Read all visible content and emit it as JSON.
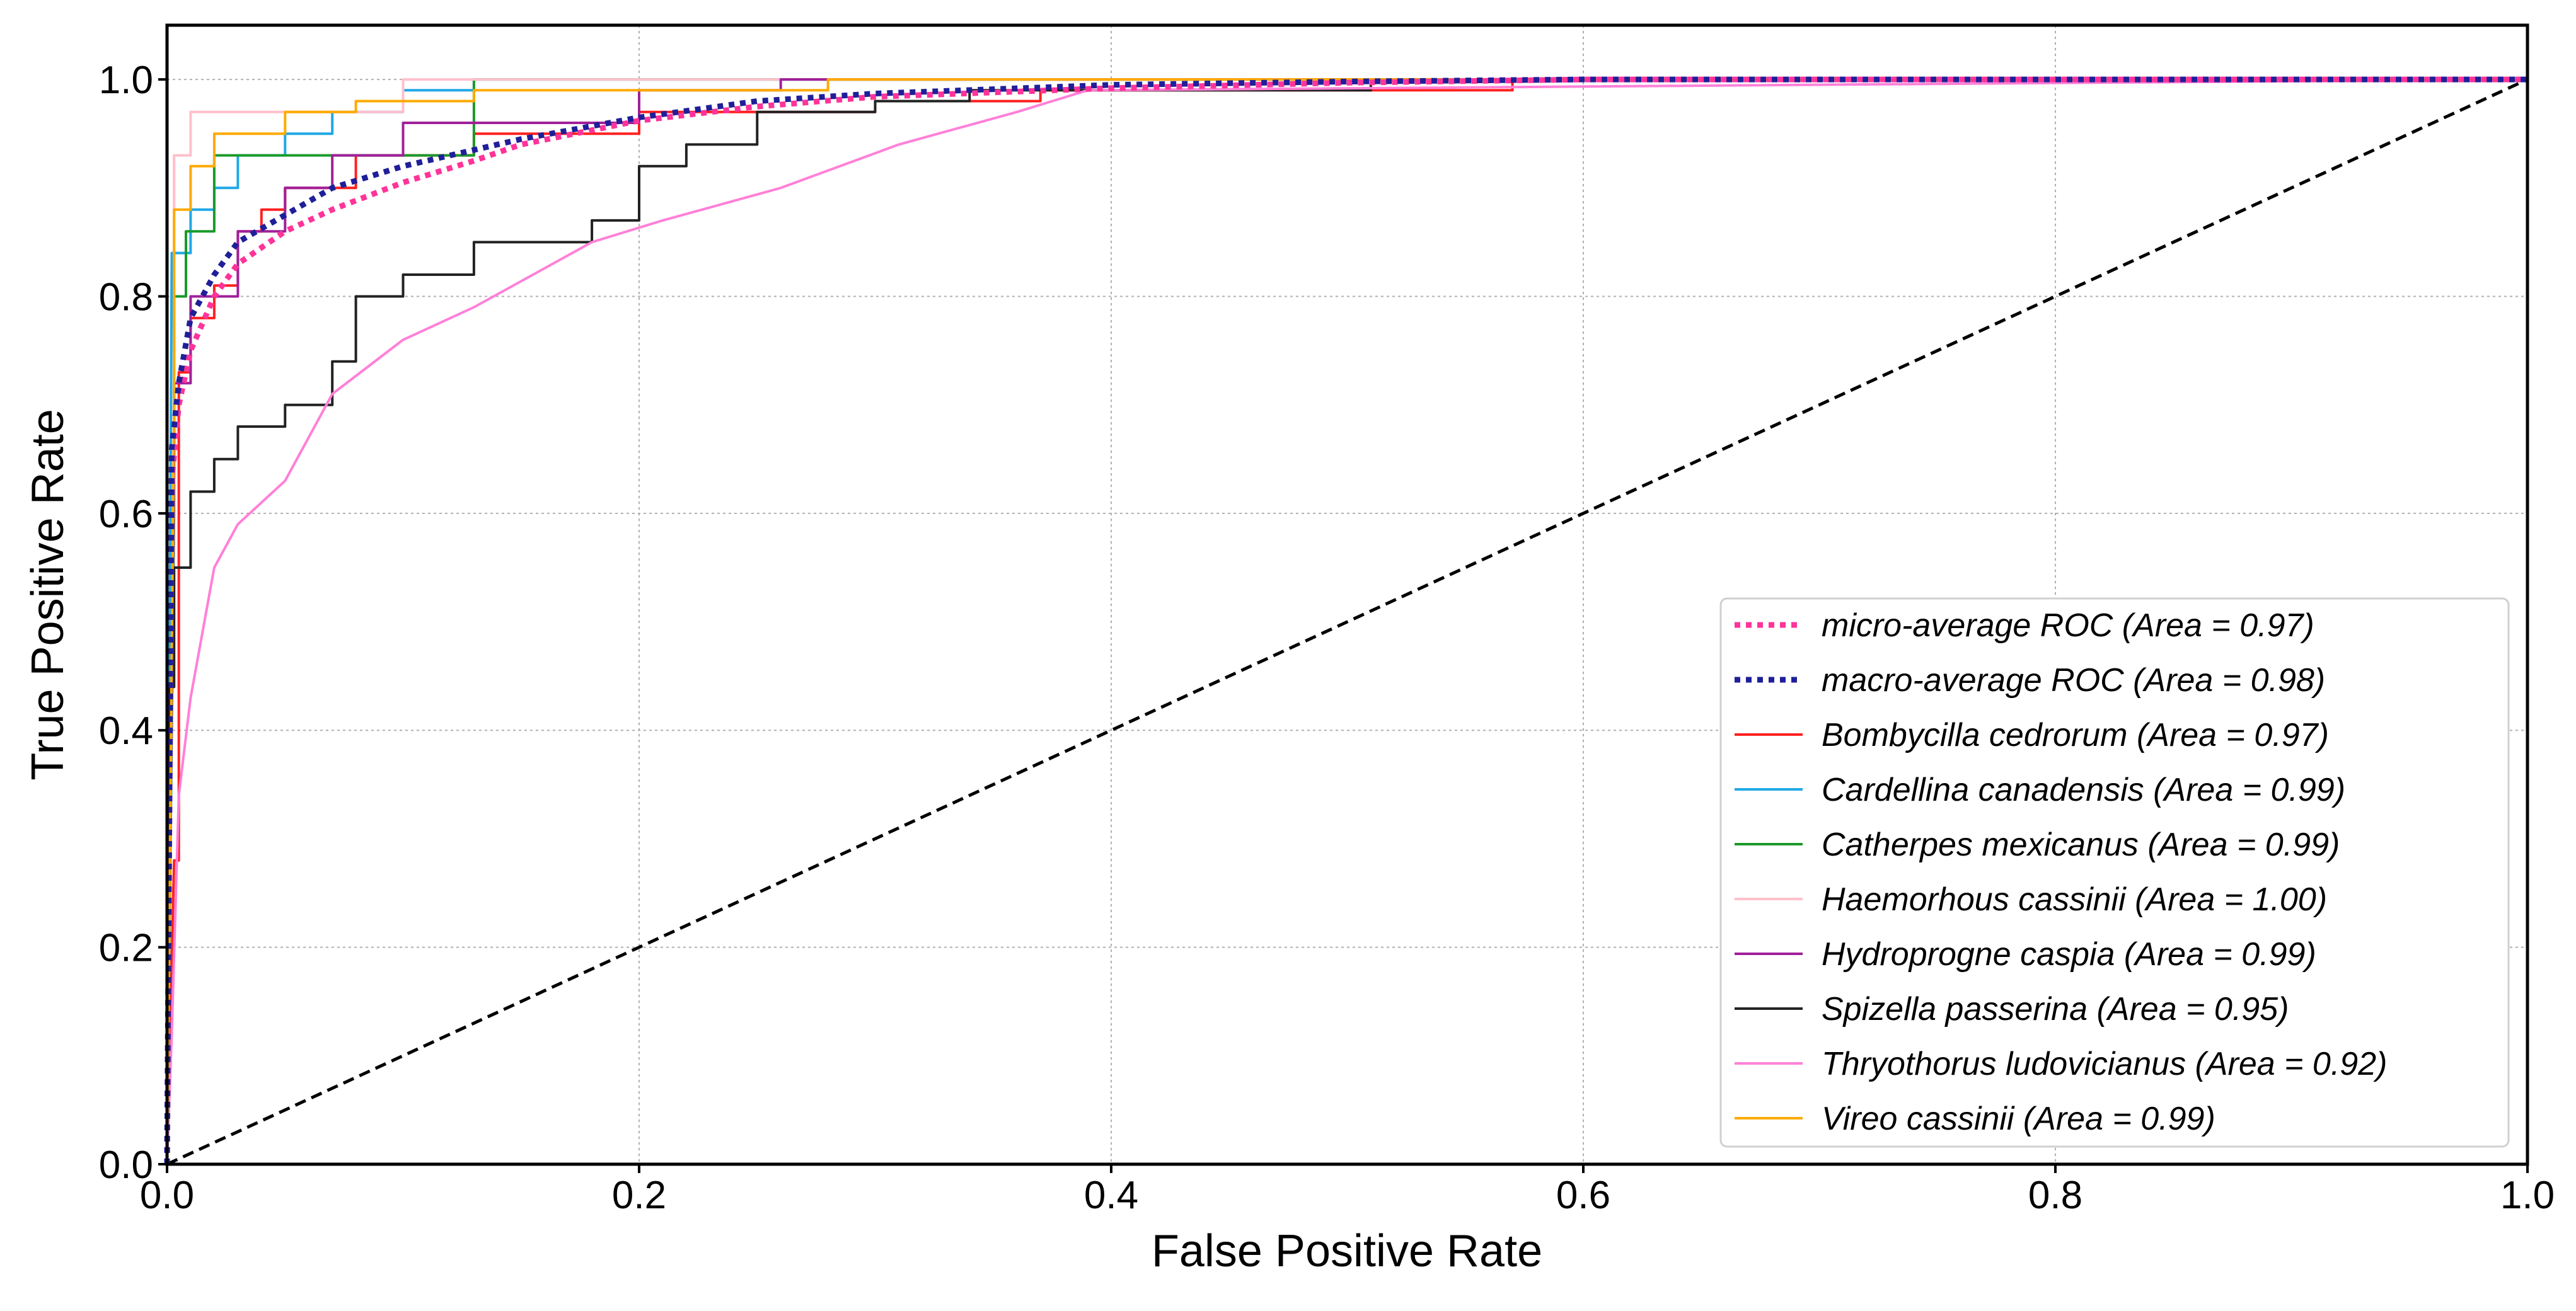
{
  "chart_data": {
    "type": "line",
    "title": "",
    "xlabel": "False Positive Rate",
    "ylabel": "True Positive Rate",
    "xlim": [
      0.0,
      1.0
    ],
    "ylim": [
      0.0,
      1.05
    ],
    "xticks": [
      "0.0",
      "0.2",
      "0.4",
      "0.6",
      "0.8",
      "1.0"
    ],
    "yticks": [
      "0.0",
      "0.2",
      "0.4",
      "0.6",
      "0.8",
      "1.0"
    ],
    "grid": true,
    "legend_position": "lower-right",
    "chance_line": {
      "x": [
        0,
        1
      ],
      "y": [
        0,
        1
      ],
      "color": "#000000",
      "style": "dashed"
    },
    "series": [
      {
        "name": "micro-average ROC (Area = 0.97)",
        "color": "#ff3399",
        "style": "dotted",
        "x": [
          0,
          0.002,
          0.005,
          0.01,
          0.02,
          0.03,
          0.05,
          0.07,
          0.1,
          0.13,
          0.15,
          0.2,
          0.25,
          0.3,
          0.4,
          0.5,
          0.6,
          0.8,
          1.0
        ],
        "y": [
          0,
          0.63,
          0.7,
          0.75,
          0.8,
          0.83,
          0.86,
          0.88,
          0.905,
          0.925,
          0.94,
          0.962,
          0.975,
          0.984,
          0.992,
          0.997,
          1.0,
          1.0,
          1.0
        ]
      },
      {
        "name": "macro-average ROC (Area = 0.98)",
        "color": "#1f1f99",
        "style": "dotted",
        "x": [
          0,
          0.002,
          0.005,
          0.01,
          0.02,
          0.03,
          0.05,
          0.07,
          0.1,
          0.13,
          0.15,
          0.2,
          0.25,
          0.3,
          0.4,
          0.5,
          0.6,
          0.8,
          1.0
        ],
        "y": [
          0,
          0.66,
          0.72,
          0.78,
          0.82,
          0.85,
          0.875,
          0.9,
          0.92,
          0.935,
          0.945,
          0.965,
          0.98,
          0.987,
          0.995,
          0.998,
          1.0,
          1.0,
          1.0
        ]
      },
      {
        "name": "Bombycilla cedrorum (Area = 0.97)",
        "color": "#ff2020",
        "style": "solid",
        "x": [
          0,
          0.003,
          0.005,
          0.005,
          0.01,
          0.01,
          0.02,
          0.02,
          0.03,
          0.03,
          0.04,
          0.04,
          0.05,
          0.05,
          0.08,
          0.08,
          0.13,
          0.13,
          0.2,
          0.2,
          0.3,
          0.3,
          0.37,
          0.37,
          0.57,
          0.57,
          1.0
        ],
        "y": [
          0,
          0.28,
          0.28,
          0.73,
          0.73,
          0.78,
          0.78,
          0.81,
          0.81,
          0.86,
          0.86,
          0.88,
          0.88,
          0.9,
          0.9,
          0.93,
          0.93,
          0.95,
          0.95,
          0.97,
          0.97,
          0.98,
          0.98,
          0.99,
          0.99,
          1.0,
          1.0
        ]
      },
      {
        "name": "Cardellina canadensis (Area = 0.99)",
        "color": "#1ea8e6",
        "style": "solid",
        "x": [
          0,
          0.002,
          0.002,
          0.01,
          0.01,
          0.02,
          0.02,
          0.03,
          0.03,
          0.05,
          0.05,
          0.07,
          0.07,
          0.1,
          0.1,
          0.13,
          0.13,
          1.0
        ],
        "y": [
          0,
          0.84,
          0.84,
          0.84,
          0.88,
          0.88,
          0.9,
          0.9,
          0.93,
          0.93,
          0.95,
          0.95,
          0.97,
          0.97,
          0.99,
          0.99,
          1.0,
          1.0
        ]
      },
      {
        "name": "Catherpes mexicanus (Area = 0.99)",
        "color": "#1a9a2a",
        "style": "solid",
        "x": [
          0,
          0.003,
          0.003,
          0.008,
          0.008,
          0.02,
          0.02,
          0.04,
          0.04,
          0.13,
          0.13,
          1.0
        ],
        "y": [
          0,
          0.6,
          0.8,
          0.8,
          0.86,
          0.86,
          0.93,
          0.93,
          0.93,
          0.93,
          1.0,
          1.0
        ]
      },
      {
        "name": "Haemorhous cassinii (Area = 1.00)",
        "color": "#ffc0cb",
        "style": "solid",
        "x": [
          0,
          0.003,
          0.003,
          0.01,
          0.01,
          0.1,
          0.1,
          1.0
        ],
        "y": [
          0,
          0.65,
          0.93,
          0.93,
          0.97,
          0.97,
          1.0,
          1.0
        ]
      },
      {
        "name": "Hydroprogne caspia (Area = 0.99)",
        "color": "#a0209a",
        "style": "solid",
        "x": [
          0,
          0.003,
          0.003,
          0.01,
          0.01,
          0.03,
          0.03,
          0.05,
          0.05,
          0.07,
          0.07,
          0.1,
          0.1,
          0.2,
          0.2,
          0.26,
          0.26,
          1.0
        ],
        "y": [
          0,
          0.66,
          0.72,
          0.72,
          0.8,
          0.8,
          0.86,
          0.86,
          0.9,
          0.9,
          0.93,
          0.93,
          0.96,
          0.96,
          0.99,
          0.99,
          1.0,
          1.0
        ]
      },
      {
        "name": "Spizella passerina (Area = 0.95)",
        "color": "#222222",
        "style": "solid",
        "x": [
          0,
          0.001,
          0.001,
          0.003,
          0.003,
          0.01,
          0.01,
          0.02,
          0.02,
          0.03,
          0.03,
          0.05,
          0.05,
          0.07,
          0.07,
          0.08,
          0.08,
          0.1,
          0.1,
          0.13,
          0.13,
          0.18,
          0.18,
          0.2,
          0.2,
          0.22,
          0.22,
          0.25,
          0.25,
          0.3,
          0.3,
          0.34,
          0.34,
          0.51,
          0.51,
          1.0
        ],
        "y": [
          0,
          0.4,
          0.44,
          0.44,
          0.55,
          0.55,
          0.62,
          0.62,
          0.65,
          0.65,
          0.68,
          0.68,
          0.7,
          0.7,
          0.74,
          0.74,
          0.8,
          0.8,
          0.82,
          0.82,
          0.85,
          0.85,
          0.87,
          0.87,
          0.92,
          0.92,
          0.94,
          0.94,
          0.97,
          0.97,
          0.98,
          0.98,
          0.99,
          0.99,
          1.0,
          1.0
        ]
      },
      {
        "name": "Thryothorus ludovicianus (Area = 0.92)",
        "color": "#ff80d8",
        "style": "solid",
        "x": [
          0,
          0.002,
          0.002,
          0.005,
          0.005,
          0.01,
          0.01,
          0.02,
          0.02,
          0.03,
          0.03,
          0.05,
          0.05,
          0.07,
          0.07,
          0.1,
          0.1,
          0.13,
          0.13,
          0.18,
          0.18,
          0.21,
          0.21,
          0.26,
          0.26,
          0.31,
          0.31,
          0.36,
          0.36,
          0.39,
          0.39,
          1.0
        ],
        "y": [
          0,
          0.12,
          0.12,
          0.34,
          0.34,
          0.43,
          0.43,
          0.55,
          0.55,
          0.59,
          0.59,
          0.63,
          0.63,
          0.71,
          0.71,
          0.76,
          0.76,
          0.79,
          0.79,
          0.85,
          0.85,
          0.87,
          0.87,
          0.9,
          0.9,
          0.94,
          0.94,
          0.97,
          0.97,
          0.99,
          0.99,
          1.0
        ]
      },
      {
        "name": "Vireo cassinii (Area = 0.99)",
        "color": "#ffaa00",
        "style": "solid",
        "x": [
          0,
          0.003,
          0.003,
          0.01,
          0.01,
          0.02,
          0.02,
          0.05,
          0.05,
          0.08,
          0.08,
          0.13,
          0.13,
          0.28,
          0.28,
          1.0
        ],
        "y": [
          0,
          0.7,
          0.88,
          0.88,
          0.92,
          0.92,
          0.95,
          0.95,
          0.97,
          0.97,
          0.98,
          0.98,
          0.99,
          0.99,
          1.0,
          1.0
        ]
      }
    ]
  }
}
